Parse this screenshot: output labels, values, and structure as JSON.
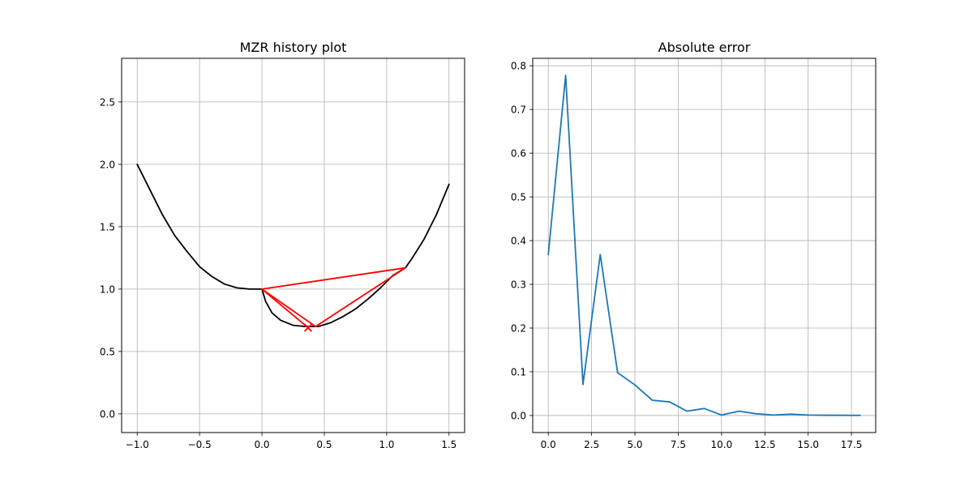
{
  "chart_data": [
    {
      "type": "line",
      "title": "MZR history plot",
      "xlabel": "",
      "ylabel": "",
      "xlim": [
        -1.125,
        1.625
      ],
      "ylim": [
        -0.15,
        2.85
      ],
      "grid": true,
      "xticks": [
        -1.0,
        -0.5,
        0.0,
        0.5,
        1.0,
        1.5
      ],
      "xtick_labels": [
        "−1.0",
        "−0.5",
        "0.0",
        "0.5",
        "1.0",
        "1.5"
      ],
      "yticks": [
        0.0,
        0.5,
        1.0,
        1.5,
        2.0,
        2.5
      ],
      "ytick_labels": [
        "0.0",
        "0.5",
        "1.0",
        "1.5",
        "2.0",
        "2.5"
      ],
      "series": [
        {
          "color": "#000000",
          "style": "curve",
          "points": [
            [
              -1.0,
              2.0
            ],
            [
              -0.9,
              1.8
            ],
            [
              -0.8,
              1.6
            ],
            [
              -0.7,
              1.43
            ],
            [
              -0.6,
              1.3
            ],
            [
              -0.5,
              1.18
            ],
            [
              -0.4,
              1.1
            ],
            [
              -0.3,
              1.04
            ],
            [
              -0.2,
              1.01
            ],
            [
              -0.1,
              1.0
            ],
            [
              0.0,
              1.0
            ],
            [
              0.03,
              0.9
            ],
            [
              0.08,
              0.81
            ],
            [
              0.15,
              0.75
            ],
            [
              0.25,
              0.71
            ],
            [
              0.35,
              0.7
            ],
            [
              0.45,
              0.7
            ],
            [
              0.55,
              0.73
            ],
            [
              0.65,
              0.78
            ],
            [
              0.75,
              0.84
            ],
            [
              0.85,
              0.92
            ],
            [
              0.95,
              1.01
            ],
            [
              1.05,
              1.11
            ],
            [
              1.15,
              1.17
            ],
            [
              1.2,
              1.24
            ],
            [
              1.3,
              1.4
            ],
            [
              1.4,
              1.6
            ],
            [
              1.5,
              1.84
            ]
          ]
        },
        {
          "color": "#ff0000",
          "style": "path",
          "points": [
            [
              0.0,
              1.0
            ],
            [
              1.15,
              1.17
            ],
            [
              0.43,
              0.7
            ],
            [
              0.0,
              1.0
            ],
            [
              0.37,
              0.69
            ],
            [
              0.0,
              1.0
            ],
            [
              0.43,
              0.7
            ]
          ]
        }
      ],
      "markers": [
        {
          "x": 0.37,
          "y": 0.69,
          "symbol": "x",
          "color": "#ff0000"
        }
      ]
    },
    {
      "type": "line",
      "title": "Absolute error",
      "xlabel": "",
      "ylabel": "",
      "xlim": [
        -0.9,
        18.9
      ],
      "ylim": [
        -0.039,
        0.817
      ],
      "grid": true,
      "xticks": [
        0.0,
        2.5,
        5.0,
        7.5,
        10.0,
        12.5,
        15.0,
        17.5
      ],
      "xtick_labels": [
        "0.0",
        "2.5",
        "5.0",
        "7.5",
        "10.0",
        "12.5",
        "15.0",
        "17.5"
      ],
      "yticks": [
        0.0,
        0.1,
        0.2,
        0.3,
        0.4,
        0.5,
        0.6,
        0.7,
        0.8
      ],
      "ytick_labels": [
        "0.0",
        "0.1",
        "0.2",
        "0.3",
        "0.4",
        "0.5",
        "0.6",
        "0.7",
        "0.8"
      ],
      "series": [
        {
          "color": "#1f77b4",
          "x": [
            0,
            1,
            2,
            3,
            4,
            5,
            6,
            7,
            8,
            9,
            10,
            11,
            12,
            13,
            14,
            15,
            16,
            17,
            18
          ],
          "values": [
            0.368,
            0.778,
            0.071,
            0.368,
            0.098,
            0.07,
            0.035,
            0.031,
            0.01,
            0.016,
            0.001,
            0.01,
            0.004,
            0.001,
            0.003,
            0.001,
            0.0005,
            0.0005,
            0.0002
          ]
        }
      ]
    }
  ]
}
